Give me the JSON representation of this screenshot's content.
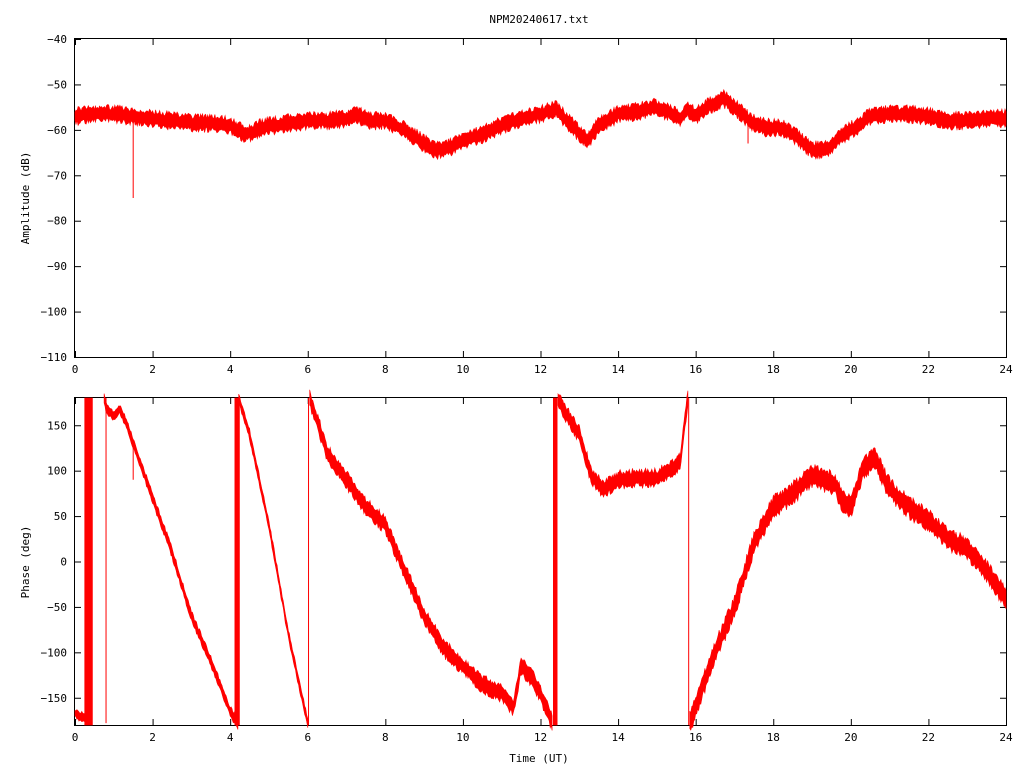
{
  "title": "NPM20240617.txt",
  "colors": {
    "trace": "#ff0000",
    "axis": "#000000",
    "background": "#ffffff"
  },
  "chart_data": [
    {
      "type": "line",
      "xlabel": "",
      "ylabel": "Amplitude (dB)",
      "xlim": [
        0,
        24
      ],
      "ylim": [
        -110,
        -40
      ],
      "xticks": [
        "0",
        "2",
        "4",
        "6",
        "8",
        "10",
        "12",
        "14",
        "16",
        "18",
        "20",
        "22",
        "24"
      ],
      "yticks": [
        "-40",
        "-50",
        "-60",
        "-70",
        "-80",
        "-90",
        "-100",
        "-110"
      ],
      "grid": false,
      "series": [
        {
          "x": [
            0,
            0.5,
            1.0,
            1.5,
            2.0,
            2.5,
            3.0,
            3.5,
            4.0,
            4.4,
            4.8,
            5.5,
            6.0,
            6.5,
            7.0,
            7.2,
            7.6,
            8.0,
            8.5,
            9.0,
            9.3,
            9.6,
            10.0,
            10.5,
            11.0,
            11.5,
            12.0,
            12.4,
            12.8,
            13.2,
            13.5,
            14.0,
            14.5,
            14.9,
            15.3,
            15.6,
            15.8,
            16.0,
            16.3,
            16.7,
            17.0,
            17.4,
            17.8,
            18.2,
            18.6,
            19.0,
            19.4,
            19.8,
            20.2,
            20.5,
            21.0,
            21.5,
            22.0,
            22.5,
            23.0,
            23.5,
            24.0
          ],
          "y": [
            -57,
            -56.5,
            -56.5,
            -57,
            -57.5,
            -58,
            -58.5,
            -58.5,
            -59,
            -61,
            -59.5,
            -58.5,
            -58,
            -58,
            -57.5,
            -56.5,
            -58,
            -58,
            -60,
            -63,
            -64.5,
            -64,
            -62.5,
            -61,
            -59,
            -57.5,
            -56.5,
            -55.5,
            -59,
            -62.5,
            -59,
            -56.5,
            -56,
            -55,
            -56,
            -57.5,
            -55.5,
            -57,
            -55,
            -53,
            -55,
            -58,
            -59.5,
            -59.5,
            -61.5,
            -64.5,
            -64,
            -61,
            -59,
            -57,
            -56.5,
            -56.5,
            -57,
            -58,
            -58,
            -57.5,
            -57.5
          ],
          "band": 1.5
        }
      ],
      "spikes": [
        {
          "x": 1.5,
          "from": -57,
          "to": -75
        },
        {
          "x": 17.35,
          "from": -59,
          "to": -63
        }
      ]
    },
    {
      "type": "line",
      "xlabel": "Time (UT)",
      "ylabel": "Phase (deg)",
      "xlim": [
        0,
        24
      ],
      "ylim": [
        -180,
        180
      ],
      "xticks": [
        "0",
        "2",
        "4",
        "6",
        "8",
        "10",
        "12",
        "14",
        "16",
        "18",
        "20",
        "22",
        "24"
      ],
      "yticks": [
        "150",
        "100",
        "50",
        "0",
        "-50",
        "-100",
        "-150"
      ],
      "grid": false,
      "series": [
        {
          "x": [
            0,
            0.2,
            0.3
          ],
          "y": [
            -167,
            -172,
            -170
          ],
          "band": 5
        },
        {
          "x": [
            0.75,
            0.8,
            1.0,
            1.15,
            1.3,
            1.5,
            2.0,
            2.5,
            3.0,
            3.5,
            4.0,
            4.2
          ],
          "y": [
            180,
            170,
            160,
            168,
            155,
            130,
            70,
            10,
            -60,
            -110,
            -165,
            -180
          ],
          "band": 5
        },
        {
          "x": [
            4.22,
            4.5,
            5.0,
            5.5,
            6.0
          ],
          "y": [
            180,
            140,
            40,
            -80,
            -178
          ],
          "band": 5
        },
        {
          "x": [
            6.05,
            6.5,
            7.0,
            7.5,
            8.0,
            8.5,
            9.0,
            9.5,
            10.0,
            10.5,
            11.0,
            11.3,
            11.5,
            11.8,
            12.0,
            12.3
          ],
          "y": [
            180,
            120,
            90,
            60,
            40,
            -10,
            -60,
            -95,
            -115,
            -135,
            -145,
            -160,
            -115,
            -130,
            -145,
            -178
          ],
          "band": 8
        },
        {
          "x": [
            12.45,
            12.7,
            13.0,
            13.3,
            13.6,
            14.0,
            14.5,
            15.0,
            15.3,
            15.6,
            15.8
          ],
          "y": [
            178,
            160,
            140,
            95,
            80,
            90,
            92,
            92,
            100,
            110,
            180
          ],
          "band": 8
        },
        {
          "x": [
            15.85,
            16.0,
            16.5,
            17.0,
            17.5,
            18.0,
            18.5,
            19.0,
            19.3,
            19.6,
            19.8,
            20.0,
            20.3,
            20.6,
            21.0,
            21.5,
            22.0,
            22.5,
            23.0,
            23.5,
            24.0
          ],
          "y": [
            -178,
            -160,
            -100,
            -50,
            20,
            60,
            75,
            95,
            90,
            85,
            65,
            60,
            100,
            115,
            80,
            60,
            45,
            25,
            15,
            -10,
            -42
          ],
          "band": 10
        }
      ],
      "spikes": [
        {
          "x": 0.8,
          "from": -178,
          "to": 180
        },
        {
          "x": 1.5,
          "from": 90,
          "to": 135
        },
        {
          "x": 4.2,
          "from": -180,
          "to": 180
        },
        {
          "x": 6.02,
          "from": -180,
          "to": 180
        },
        {
          "x": 12.4,
          "from": -180,
          "to": 180
        },
        {
          "x": 15.82,
          "from": -180,
          "to": 180
        }
      ],
      "fills": [
        {
          "x0": 0.25,
          "x1": 0.45,
          "from": -180,
          "to": 180
        },
        {
          "x0": 4.12,
          "x1": 4.24,
          "from": -180,
          "to": 180
        },
        {
          "x0": 12.33,
          "x1": 12.43,
          "from": -180,
          "to": 180
        }
      ]
    }
  ]
}
